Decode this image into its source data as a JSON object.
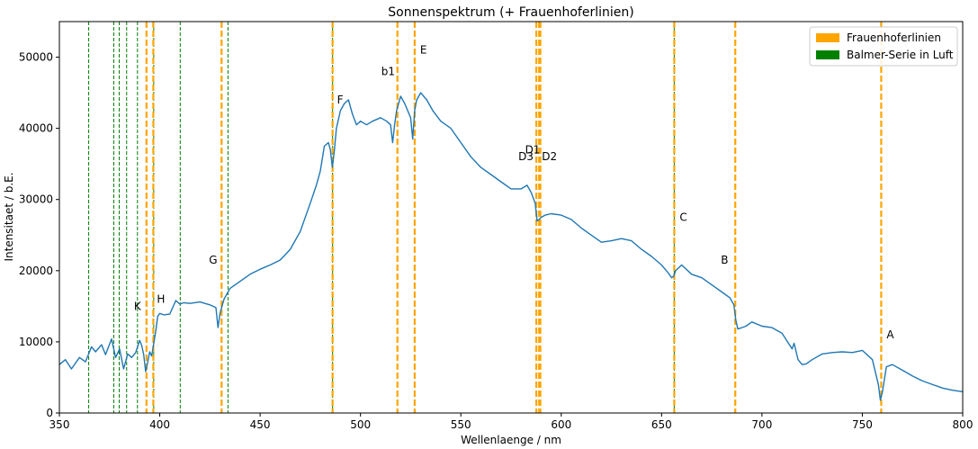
{
  "chart_data": {
    "type": "line",
    "title": "Sonnenspektrum (+ Frauenhoferlinien)",
    "xlabel": "Wellenlaenge / nm",
    "ylabel": "Intensitaet / b.E.",
    "xlim": [
      350,
      800
    ],
    "ylim": [
      0,
      55000
    ],
    "x_ticks": [
      350,
      400,
      450,
      500,
      550,
      600,
      650,
      700,
      750,
      800
    ],
    "y_ticks": [
      0,
      10000,
      20000,
      30000,
      40000,
      50000
    ],
    "grid": false,
    "legend_position": "top-right",
    "legend": [
      {
        "label": "Frauenhoferlinien",
        "color": "#ffa500"
      },
      {
        "label": "Balmer-Serie in Luft",
        "color": "#008000"
      }
    ],
    "series": [
      {
        "color": "#1f77b4",
        "x": [
          350,
          353,
          356,
          360,
          363,
          366,
          368,
          371,
          373,
          376,
          378,
          380,
          382,
          384,
          386,
          388,
          390,
          391,
          392,
          393,
          394,
          395,
          396,
          397,
          398,
          399,
          400,
          402,
          405,
          408,
          410,
          412,
          415,
          420,
          425,
          428,
          429,
          430,
          432,
          435,
          440,
          445,
          450,
          455,
          460,
          465,
          470,
          475,
          478,
          480,
          482,
          484,
          485,
          486,
          487,
          488,
          490,
          492,
          494,
          496,
          498,
          500,
          503,
          506,
          510,
          513,
          515,
          516,
          517,
          518,
          520,
          522,
          525,
          526,
          527,
          528,
          530,
          533,
          536,
          540,
          545,
          550,
          555,
          560,
          565,
          570,
          575,
          580,
          583,
          585,
          587,
          588,
          589,
          590,
          592,
          595,
          600,
          605,
          610,
          615,
          620,
          625,
          630,
          635,
          640,
          645,
          650,
          653,
          655,
          656,
          657,
          660,
          665,
          670,
          675,
          680,
          684,
          686,
          687,
          688,
          690,
          692,
          695,
          700,
          705,
          710,
          715,
          716,
          718,
          720,
          722,
          725,
          730,
          735,
          740,
          745,
          750,
          755,
          758,
          759,
          760,
          762,
          765,
          770,
          775,
          780,
          785,
          790,
          795,
          800
        ],
        "values": [
          6800,
          7500,
          6200,
          7800,
          7200,
          9300,
          8600,
          9600,
          8200,
          10400,
          7800,
          9000,
          6200,
          8300,
          7800,
          8500,
          10200,
          9500,
          8200,
          5800,
          7200,
          8600,
          8000,
          9800,
          11500,
          13600,
          14000,
          13800,
          13900,
          15800,
          15300,
          15500,
          15400,
          15600,
          15200,
          14800,
          12000,
          14000,
          16000,
          17500,
          18500,
          19500,
          20200,
          20800,
          21500,
          23000,
          25500,
          29500,
          32000,
          34000,
          37500,
          38000,
          37000,
          34500,
          37000,
          40000,
          42500,
          43500,
          44000,
          42000,
          40500,
          41000,
          40500,
          41000,
          41500,
          41000,
          40500,
          38000,
          40500,
          42500,
          44500,
          43500,
          41500,
          38500,
          42500,
          44000,
          45000,
          44000,
          42500,
          41000,
          40000,
          38000,
          36000,
          34500,
          33500,
          32500,
          31500,
          31500,
          32000,
          31000,
          29500,
          27000,
          27200,
          27500,
          27800,
          28000,
          27800,
          27200,
          26000,
          25000,
          24000,
          24200,
          24500,
          24200,
          23000,
          22000,
          20800,
          19800,
          19000,
          19200,
          20000,
          20800,
          19500,
          19000,
          18000,
          17000,
          16200,
          15200,
          13000,
          11800,
          12000,
          12200,
          12800,
          12200,
          12000,
          11200,
          9000,
          9800,
          7500,
          6800,
          6900,
          7500,
          8300,
          8500,
          8600,
          8500,
          8800,
          7500,
          4000,
          1800,
          3000,
          6500,
          6800,
          6000,
          5200,
          4500,
          4000,
          3500,
          3200,
          3000
        ]
      }
    ],
    "fraunhofer_lines": [
      {
        "label": "K",
        "x": 393.4
      },
      {
        "label": "H",
        "x": 396.8
      },
      {
        "label": "G",
        "x": 430.8
      },
      {
        "label": "F",
        "x": 486.1
      },
      {
        "label": "b1",
        "x": 518.4
      },
      {
        "label": "E",
        "x": 527.0
      },
      {
        "label": "D3",
        "x": 587.6
      },
      {
        "label": "D1",
        "x": 589.6
      },
      {
        "label": "D2",
        "x": 589.0
      },
      {
        "label": "C",
        "x": 656.3
      },
      {
        "label": "B",
        "x": 686.7
      },
      {
        "label": "A",
        "x": 759.4
      }
    ],
    "fraunhofer_label_y": [
      {
        "label": "K",
        "y": 14500
      },
      {
        "label": "H",
        "y": 15500
      },
      {
        "label": "G",
        "y": 21000
      },
      {
        "label": "F",
        "y": 43500
      },
      {
        "label": "b1",
        "y": 47500
      },
      {
        "label": "E",
        "y": 50500
      },
      {
        "label": "D3",
        "y": 35500
      },
      {
        "label": "D1",
        "y": 36500
      },
      {
        "label": "D2",
        "y": 35500
      },
      {
        "label": "C",
        "y": 27000
      },
      {
        "label": "B",
        "y": 21000
      },
      {
        "label": "A",
        "y": 10500
      }
    ],
    "balmer_lines": [
      364.6,
      377.1,
      379.8,
      383.5,
      388.9,
      397.0,
      410.2,
      434.0,
      486.1,
      656.3
    ]
  }
}
